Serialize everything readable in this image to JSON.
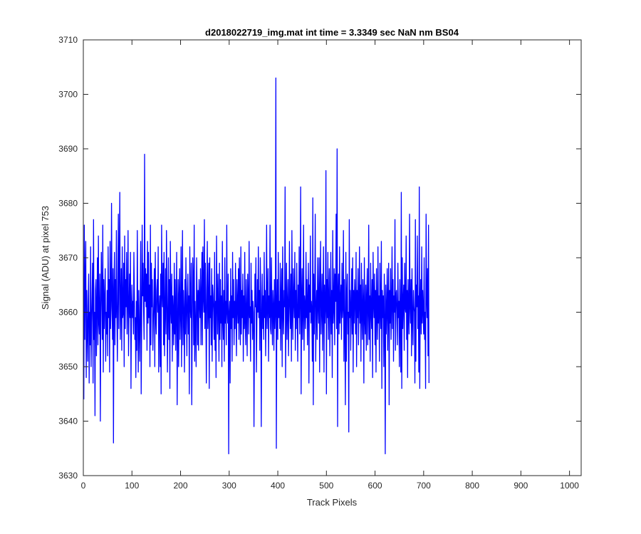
{
  "chart_data": {
    "type": "line",
    "title": "d2018022719_img.mat int time = 3.3349 sec  NaN nm BS04",
    "xlabel": "Track Pixels",
    "ylabel": "Signal (ADU) at pixel 753",
    "xlim": [
      0,
      1024
    ],
    "ylim": [
      3630,
      3710
    ],
    "xticks": [
      0,
      100,
      200,
      300,
      400,
      500,
      600,
      700,
      800,
      900,
      1000
    ],
    "yticks": [
      3630,
      3640,
      3650,
      3660,
      3670,
      3680,
      3690,
      3700,
      3710
    ],
    "grid": false,
    "legend": "none",
    "series": [
      {
        "color": "#0000ff",
        "x_start": 1,
        "x_step": 1,
        "values": [
          3644,
          3676,
          3655,
          3666,
          3673,
          3648,
          3664,
          3657,
          3651,
          3662,
          3667,
          3647,
          3660,
          3654,
          3672,
          3650,
          3658,
          3663,
          3669,
          3647,
          3677,
          3655,
          3660,
          3641,
          3664,
          3666,
          3652,
          3661,
          3670,
          3654,
          3674,
          3658,
          3656,
          3667,
          3640,
          3660,
          3671,
          3663,
          3655,
          3676,
          3649,
          3666,
          3657,
          3662,
          3668,
          3651,
          3660,
          3656,
          3664,
          3652,
          3672,
          3659,
          3666,
          3649,
          3673,
          3657,
          3661,
          3680,
          3662,
          3655,
          3668,
          3636,
          3664,
          3671,
          3654,
          3666,
          3659,
          3675,
          3660,
          3651,
          3663,
          3678,
          3657,
          3669,
          3682,
          3655,
          3661,
          3668,
          3653,
          3672,
          3659,
          3660,
          3669,
          3650,
          3674,
          3657,
          3666,
          3661,
          3671,
          3656,
          3663,
          3675,
          3652,
          3660,
          3667,
          3659,
          3671,
          3646,
          3660,
          3665,
          3659,
          3662,
          3656,
          3671,
          3663,
          3655,
          3659,
          3648,
          3662,
          3653,
          3675,
          3660,
          3649,
          3664,
          3657,
          3651,
          3662,
          3673,
          3645,
          3658,
          3676,
          3663,
          3669,
          3660,
          3655,
          3689,
          3662,
          3668,
          3661,
          3667,
          3653,
          3673,
          3658,
          3671,
          3659,
          3665,
          3650,
          3676,
          3654,
          3669,
          3661,
          3666,
          3653,
          3658,
          3662,
          3668,
          3650,
          3671,
          3659,
          3656,
          3664,
          3666,
          3660,
          3672,
          3649,
          3660,
          3663,
          3650,
          3667,
          3645,
          3676,
          3664,
          3661,
          3669,
          3654,
          3671,
          3652,
          3660,
          3668,
          3656,
          3675,
          3663,
          3649,
          3660,
          3670,
          3655,
          3666,
          3646,
          3673,
          3661,
          3658,
          3667,
          3651,
          3663,
          3660,
          3654,
          3669,
          3656,
          3666,
          3653,
          3661,
          3671,
          3643,
          3658,
          3666,
          3650,
          3663,
          3668,
          3655,
          3660,
          3672,
          3650,
          3662,
          3675,
          3654,
          3664,
          3660,
          3649,
          3666,
          3656,
          3670,
          3661,
          3652,
          3663,
          3667,
          3656,
          3663,
          3645,
          3672,
          3661,
          3659,
          3669,
          3643,
          3657,
          3670,
          3666,
          3654,
          3676,
          3651,
          3662,
          3657,
          3650,
          3670,
          3663,
          3654,
          3664,
          3653,
          3666,
          3662,
          3659,
          3668,
          3654,
          3663,
          3671,
          3654,
          3672,
          3663,
          3660,
          3677,
          3657,
          3669,
          3660,
          3647,
          3664,
          3673,
          3657,
          3661,
          3669,
          3646,
          3670,
          3659,
          3663,
          3654,
          3668,
          3651,
          3665,
          3663,
          3660,
          3655,
          3671,
          3653,
          3662,
          3648,
          3674,
          3662,
          3656,
          3667,
          3660,
          3651,
          3669,
          3655,
          3666,
          3658,
          3663,
          3650,
          3673,
          3659,
          3655,
          3664,
          3651,
          3670,
          3658,
          3662,
          3654,
          3676,
          3660,
          3658,
          3667,
          3634,
          3660,
          3662,
          3647,
          3668,
          3657,
          3663,
          3651,
          3671,
          3659,
          3666,
          3654,
          3662,
          3657,
          3669,
          3660,
          3652,
          3666,
          3661,
          3658,
          3668,
          3655,
          3670,
          3660,
          3654,
          3672,
          3656,
          3664,
          3659,
          3667,
          3651,
          3663,
          3657,
          3671,
          3658,
          3654,
          3666,
          3660,
          3652,
          3667,
          3662,
          3656,
          3673,
          3659,
          3661,
          3651,
          3669,
          3658,
          3664,
          3655,
          3662,
          3660,
          3639,
          3656,
          3667,
          3661,
          3670,
          3649,
          3658,
          3666,
          3660,
          3672,
          3659,
          3664,
          3653,
          3670,
          3663,
          3639,
          3660,
          3667,
          3657,
          3663,
          3655,
          3671,
          3659,
          3664,
          3652,
          3660,
          3676,
          3657,
          3662,
          3668,
          3651,
          3663,
          3659,
          3676,
          3657,
          3656,
          3670,
          3660,
          3654,
          3664,
          3661,
          3653,
          3666,
          3657,
          3660,
          3703,
          3635,
          3660,
          3666,
          3655,
          3671,
          3659,
          3662,
          3657,
          3669,
          3653,
          3663,
          3668,
          3650,
          3672,
          3660,
          3656,
          3664,
          3661,
          3683,
          3648,
          3660,
          3669,
          3655,
          3661,
          3666,
          3652,
          3660,
          3673,
          3661,
          3657,
          3667,
          3651,
          3675,
          3660,
          3655,
          3668,
          3662,
          3659,
          3671,
          3653,
          3664,
          3657,
          3669,
          3660,
          3651,
          3665,
          3659,
          3672,
          3656,
          3663,
          3683,
          3645,
          3662,
          3668,
          3655,
          3660,
          3676,
          3653,
          3663,
          3661,
          3657,
          3671,
          3659,
          3666,
          3654,
          3662,
          3669,
          3647,
          3665,
          3660,
          3674,
          3658,
          3662,
          3660,
          3651,
          3681,
          3643,
          3667,
          3656,
          3663,
          3678,
          3651,
          3660,
          3664,
          3655,
          3670,
          3661,
          3658,
          3670,
          3649,
          3664,
          3673,
          3656,
          3661,
          3667,
          3653,
          3662,
          3672,
          3649,
          3665,
          3658,
          3661,
          3686,
          3645,
          3666,
          3659,
          3671,
          3655,
          3662,
          3668,
          3652,
          3660,
          3671,
          3656,
          3664,
          3648,
          3675,
          3658,
          3661,
          3668,
          3654,
          3667,
          3662,
          3678,
          3657,
          3690,
          3639,
          3663,
          3667,
          3656,
          3672,
          3658,
          3662,
          3665,
          3655,
          3669,
          3659,
          3661,
          3675,
          3651,
          3666,
          3657,
          3643,
          3671,
          3651,
          3663,
          3667,
          3656,
          3660,
          3638,
          3677,
          3659,
          3664,
          3653,
          3661,
          3668,
          3656,
          3670,
          3649,
          3664,
          3658,
          3666,
          3662,
          3656,
          3671,
          3650,
          3664,
          3659,
          3668,
          3654,
          3661,
          3672,
          3658,
          3665,
          3651,
          3669,
          3660,
          3655,
          3666,
          3662,
          3647,
          3670,
          3659,
          3656,
          3665,
          3653,
          3663,
          3668,
          3654,
          3660,
          3676,
          3655,
          3663,
          3651,
          3669,
          3660,
          3657,
          3666,
          3648,
          3671,
          3662,
          3659,
          3667,
          3654,
          3664,
          3649,
          3668,
          3660,
          3655,
          3672,
          3658,
          3663,
          3651,
          3669,
          3660,
          3657,
          3673,
          3646,
          3664,
          3659,
          3663,
          3650,
          3667,
          3659,
          3634,
          3665,
          3656,
          3660,
          3668,
          3653,
          3662,
          3669,
          3643,
          3664,
          3658,
          3668,
          3655,
          3661,
          3672,
          3657,
          3666,
          3651,
          3663,
          3660,
          3677,
          3653,
          3663,
          3664,
          3660,
          3654,
          3669,
          3659,
          3662,
          3650,
          3666,
          3658,
          3649,
          3682,
          3646,
          3670,
          3657,
          3662,
          3665,
          3653,
          3669,
          3661,
          3660,
          3674,
          3655,
          3664,
          3648,
          3666,
          3660,
          3656,
          3678,
          3661,
          3658,
          3666,
          3652,
          3668,
          3659,
          3654,
          3664,
          3661,
          3660,
          3647,
          3677,
          3651,
          3665,
          3661,
          3674,
          3657,
          3663,
          3649,
          3683,
          3646,
          3661,
          3666,
          3656,
          3672,
          3658,
          3664,
          3660,
          3656,
          3670,
          3655,
          3660,
          3646,
          3678,
          3663,
          3659,
          3668,
          3652,
          3676,
          3647
        ]
      }
    ]
  }
}
